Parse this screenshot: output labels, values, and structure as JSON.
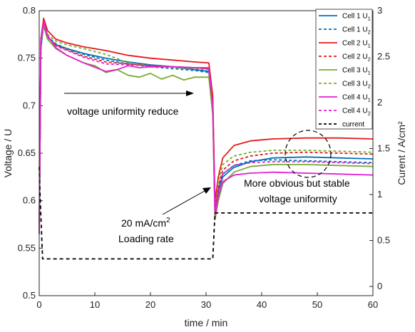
{
  "chart_data": {
    "type": "line",
    "xlabel": "time / min",
    "ylabel_left": "Voltage / U",
    "ylabel_right": "Curent / A/cm²",
    "xlim": [
      0,
      60
    ],
    "ylim_left": [
      0.5,
      0.8
    ],
    "ylim_right": [
      -0.1,
      3.0
    ],
    "x_ticks": [
      0,
      10,
      20,
      30,
      40,
      50,
      60
    ],
    "y_left_ticks": [
      0.5,
      0.55,
      0.6,
      0.65,
      0.7,
      0.75,
      0.8
    ],
    "y_right_ticks": [
      0,
      0.5,
      1,
      1.5,
      2,
      2.5,
      3
    ],
    "grid": false,
    "legend_position": "top-right",
    "series": [
      {
        "name": "Cell 1 U1",
        "label_main": "Cell 1 U",
        "label_sub": "1",
        "color": "#0072BD",
        "dash": "solid",
        "axis": "left",
        "x": [
          0,
          0.3,
          0.8,
          1.5,
          3,
          5,
          8,
          12,
          16,
          20,
          24,
          28,
          30.5,
          31.2,
          31.6,
          32.2,
          33,
          35,
          38,
          42,
          48,
          54,
          60
        ],
        "y": [
          0.565,
          0.76,
          0.786,
          0.772,
          0.764,
          0.76,
          0.755,
          0.75,
          0.746,
          0.743,
          0.741,
          0.738,
          0.736,
          0.7,
          0.59,
          0.61,
          0.625,
          0.635,
          0.641,
          0.645,
          0.646,
          0.645,
          0.644
        ]
      },
      {
        "name": "Cell 1 U2",
        "label_main": "Cell 1 U",
        "label_sub": "2",
        "color": "#0072BD",
        "dash": "dashed",
        "axis": "left",
        "x": [
          0,
          0.3,
          0.8,
          1.5,
          3,
          5,
          8,
          12,
          16,
          20,
          24,
          28,
          30.5,
          31.2,
          31.6,
          32.2,
          33,
          35,
          38,
          42,
          48,
          54,
          60
        ],
        "y": [
          0.565,
          0.76,
          0.787,
          0.773,
          0.765,
          0.76,
          0.754,
          0.748,
          0.744,
          0.741,
          0.739,
          0.737,
          0.735,
          0.7,
          0.592,
          0.612,
          0.628,
          0.637,
          0.642,
          0.643,
          0.642,
          0.641,
          0.64
        ]
      },
      {
        "name": "Cell 2 U1",
        "label_main": "Cell 2 U",
        "label_sub": "1",
        "color": "#E8191B",
        "dash": "solid",
        "axis": "left",
        "x": [
          0,
          0.3,
          0.8,
          1.5,
          3,
          5,
          8,
          12,
          16,
          20,
          24,
          28,
          30.5,
          31.2,
          31.6,
          32.2,
          33,
          35,
          38,
          42,
          48,
          54,
          60
        ],
        "y": [
          0.565,
          0.77,
          0.792,
          0.779,
          0.77,
          0.766,
          0.762,
          0.758,
          0.753,
          0.75,
          0.748,
          0.746,
          0.745,
          0.71,
          0.6,
          0.625,
          0.645,
          0.658,
          0.663,
          0.665,
          0.666,
          0.666,
          0.665
        ]
      },
      {
        "name": "Cell 2 U2",
        "label_main": "Cell 2 U",
        "label_sub": "2",
        "color": "#E8191B",
        "dash": "dashed",
        "axis": "left",
        "x": [
          0,
          0.3,
          0.8,
          1.5,
          3,
          5,
          8,
          12,
          16,
          20,
          24,
          28,
          30.5,
          31.2,
          31.6,
          32.2,
          33,
          35,
          38,
          42,
          48,
          54,
          60
        ],
        "y": [
          0.565,
          0.765,
          0.785,
          0.772,
          0.764,
          0.759,
          0.752,
          0.746,
          0.744,
          0.742,
          0.741,
          0.74,
          0.739,
          0.7,
          0.59,
          0.615,
          0.632,
          0.642,
          0.647,
          0.65,
          0.651,
          0.65,
          0.649
        ]
      },
      {
        "name": "Cell 3 U1",
        "label_main": "Cell 3 U",
        "label_sub": "1",
        "color": "#77AC30",
        "dash": "solid",
        "axis": "left",
        "x": [
          0,
          0.3,
          0.8,
          1.5,
          3,
          5,
          8,
          10,
          12,
          14,
          16,
          18,
          20,
          22,
          24,
          26,
          28,
          30.5,
          31.2,
          31.6,
          32.2,
          33,
          35,
          38,
          42,
          48,
          54,
          60
        ],
        "y": [
          0.565,
          0.765,
          0.784,
          0.77,
          0.76,
          0.753,
          0.745,
          0.742,
          0.735,
          0.738,
          0.732,
          0.73,
          0.734,
          0.728,
          0.732,
          0.727,
          0.73,
          0.73,
          0.69,
          0.58,
          0.6,
          0.618,
          0.63,
          0.636,
          0.638,
          0.638,
          0.637,
          0.636
        ]
      },
      {
        "name": "Cell 3 U2",
        "label_main": "Cell 3 U",
        "label_sub": "2",
        "color": "#77AC30",
        "dash": "dashed",
        "axis": "left",
        "x": [
          0,
          0.3,
          0.8,
          1.5,
          3,
          5,
          8,
          12,
          16,
          20,
          24,
          28,
          30.5,
          31.2,
          31.6,
          32.2,
          33,
          35,
          38,
          42,
          48,
          54,
          60
        ],
        "y": [
          0.565,
          0.768,
          0.788,
          0.775,
          0.768,
          0.764,
          0.76,
          0.754,
          0.745,
          0.742,
          0.74,
          0.739,
          0.738,
          0.7,
          0.59,
          0.62,
          0.638,
          0.647,
          0.651,
          0.653,
          0.653,
          0.652,
          0.651
        ]
      },
      {
        "name": "Cell 4 U1",
        "label_main": "Cell 4 U",
        "label_sub": "1",
        "color": "#E020D0",
        "dash": "solid",
        "axis": "left",
        "x": [
          0,
          0.3,
          0.8,
          1.5,
          3,
          5,
          8,
          12,
          14,
          16,
          18,
          20,
          24,
          28,
          30.5,
          31.2,
          31.6,
          32.2,
          33,
          35,
          38,
          42,
          48,
          54,
          60
        ],
        "y": [
          0.565,
          0.77,
          0.789,
          0.774,
          0.761,
          0.753,
          0.745,
          0.736,
          0.738,
          0.742,
          0.74,
          0.741,
          0.741,
          0.74,
          0.74,
          0.7,
          0.585,
          0.605,
          0.62,
          0.627,
          0.629,
          0.63,
          0.629,
          0.628,
          0.627
        ]
      },
      {
        "name": "Cell 4 U2",
        "label_main": "Cell 4 U",
        "label_sub": "2",
        "color": "#E020D0",
        "dash": "dashed",
        "axis": "left",
        "x": [
          0,
          0.3,
          0.8,
          1.5,
          3,
          5,
          8,
          12,
          16,
          20,
          24,
          28,
          30.5,
          31.2,
          31.6,
          32.2,
          33,
          35,
          38,
          42,
          48,
          54,
          60
        ],
        "y": [
          0.565,
          0.765,
          0.786,
          0.772,
          0.763,
          0.758,
          0.751,
          0.744,
          0.743,
          0.742,
          0.741,
          0.74,
          0.739,
          0.7,
          0.59,
          0.612,
          0.628,
          0.637,
          0.64,
          0.641,
          0.641,
          0.64,
          0.639
        ]
      },
      {
        "name": "current",
        "label_main": "current",
        "label_sub": "",
        "color": "#000000",
        "dash": "dashed",
        "axis": "right",
        "x": [
          0,
          0.15,
          0.6,
          31.2,
          31.6,
          60
        ],
        "y": [
          1.3,
          1.0,
          0.3,
          0.3,
          0.8,
          0.8
        ]
      }
    ],
    "annotations": [
      {
        "id": "voltage",
        "lines": [
          "voltage uniformity reduce"
        ]
      },
      {
        "id": "loading",
        "lines": [
          "20 mA/cm",
          "Loading rate"
        ],
        "superscript": "2"
      },
      {
        "id": "stable",
        "lines": [
          "More obvious but stable",
          "voltage uniformity"
        ]
      }
    ]
  }
}
